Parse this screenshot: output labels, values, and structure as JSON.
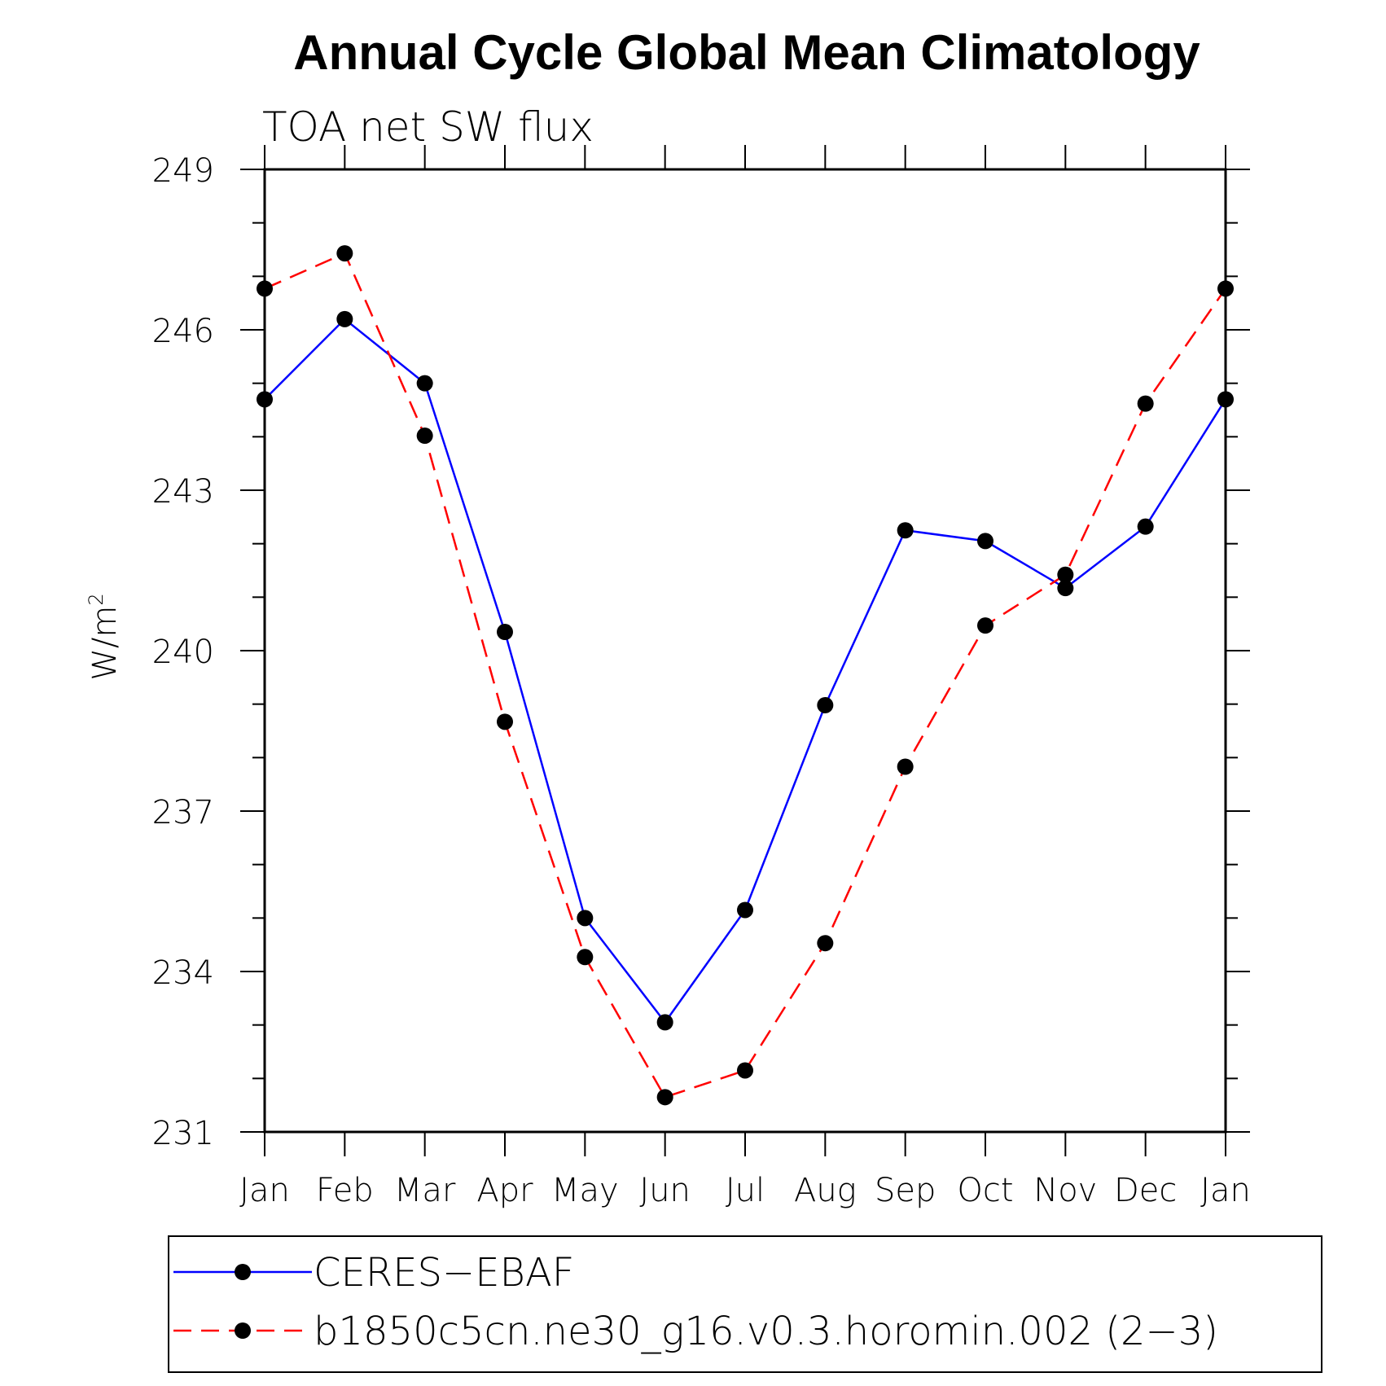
{
  "chart_data": {
    "type": "line",
    "title": "Annual Cycle Global Mean Climatology",
    "subtitle": "TOA net SW flux",
    "ylabel": "W/m",
    "ylabel_superscript": "2",
    "xlabel": "",
    "categories": [
      "Jan",
      "Feb",
      "Mar",
      "Apr",
      "May",
      "Jun",
      "Jul",
      "Aug",
      "Sep",
      "Oct",
      "Nov",
      "Dec",
      "Jan"
    ],
    "ylim": [
      231,
      249
    ],
    "yticks": [
      "231",
      "234",
      "237",
      "240",
      "243",
      "246",
      "249"
    ],
    "series": [
      {
        "name": "CERES−EBAF",
        "color": "#0000ff",
        "style": "solid",
        "marker": "filled-circle",
        "values": [
          244.7,
          246.2,
          245.0,
          240.35,
          235.0,
          233.05,
          235.15,
          238.98,
          242.25,
          242.05,
          241.17,
          242.32,
          244.7
        ]
      },
      {
        "name": "b1850c5cn.ne30_g16.v0.3.horomin.002 (2−3)",
        "color": "#ff0000",
        "style": "dashed",
        "marker": "filled-circle",
        "values": [
          246.77,
          247.43,
          244.02,
          238.67,
          234.27,
          231.65,
          232.15,
          234.53,
          237.83,
          240.47,
          241.42,
          244.62,
          246.77
        ]
      }
    ],
    "grid": false,
    "legend_position": "bottom"
  }
}
